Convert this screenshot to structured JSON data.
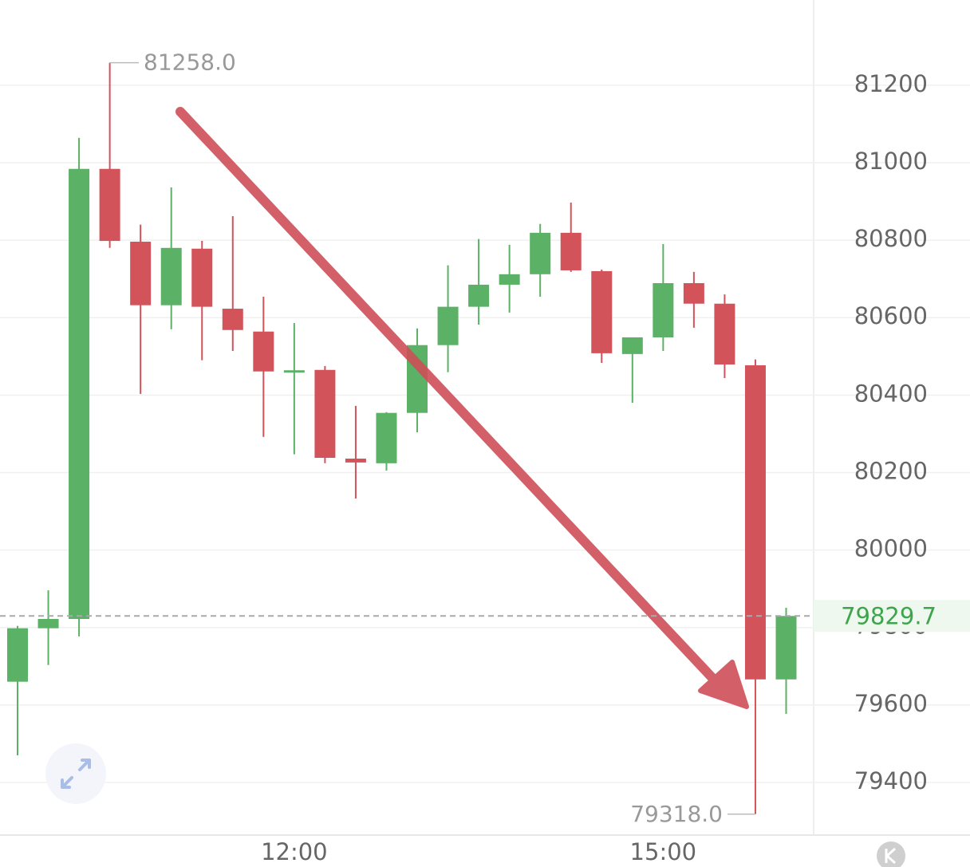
{
  "chart_data": {
    "type": "candlestick",
    "categories": [
      null,
      null,
      null,
      null,
      null,
      null,
      null,
      null,
      null,
      "12:00",
      null,
      null,
      null,
      null,
      null,
      null,
      null,
      null,
      null,
      null,
      null,
      "15:00",
      null,
      null,
      null,
      null
    ],
    "open": [
      79660,
      79798,
      79822,
      80984,
      80796,
      80632,
      80778,
      80623,
      80564,
      80458,
      80465,
      80236,
      80224,
      80354,
      80529,
      80628,
      80685,
      80712,
      80819,
      80720,
      80506,
      80549,
      80689,
      80636,
      80477,
      79666
    ],
    "high": [
      79804,
      79896,
      81064,
      81258,
      80840,
      80936,
      80798,
      80862,
      80654,
      80586,
      80475,
      80372,
      80356,
      80572,
      80735,
      80803,
      80788,
      80842,
      80897,
      80724,
      80549,
      80790,
      80718,
      80660,
      80492,
      79851
    ],
    "low": [
      79470,
      79703,
      79777,
      80780,
      80403,
      80570,
      80490,
      80514,
      80292,
      80247,
      80224,
      80133,
      80205,
      80304,
      80459,
      80582,
      80613,
      80654,
      80718,
      80483,
      80380,
      80514,
      80574,
      80444,
      79318,
      79577
    ],
    "close": [
      79798,
      79822,
      80984,
      80798,
      80632,
      80780,
      80628,
      80568,
      80461,
      80464,
      80238,
      80226,
      80354,
      80529,
      80628,
      80685,
      80712,
      80819,
      80722,
      80508,
      80549,
      80689,
      80636,
      80479,
      79666,
      79829.7
    ],
    "up_color": "#5bb165",
    "down_color": "#d3535b",
    "ylim": [
      79264,
      81420
    ],
    "yticks": [
      79400,
      79600,
      79800,
      80000,
      80200,
      80400,
      80600,
      80800,
      81000,
      81200
    ],
    "grid": true,
    "last_price": 79829.7,
    "annotations": [
      {
        "value": 81258,
        "label": "81258.0"
      },
      {
        "value": 79318,
        "label": "79318.0"
      }
    ]
  }
}
